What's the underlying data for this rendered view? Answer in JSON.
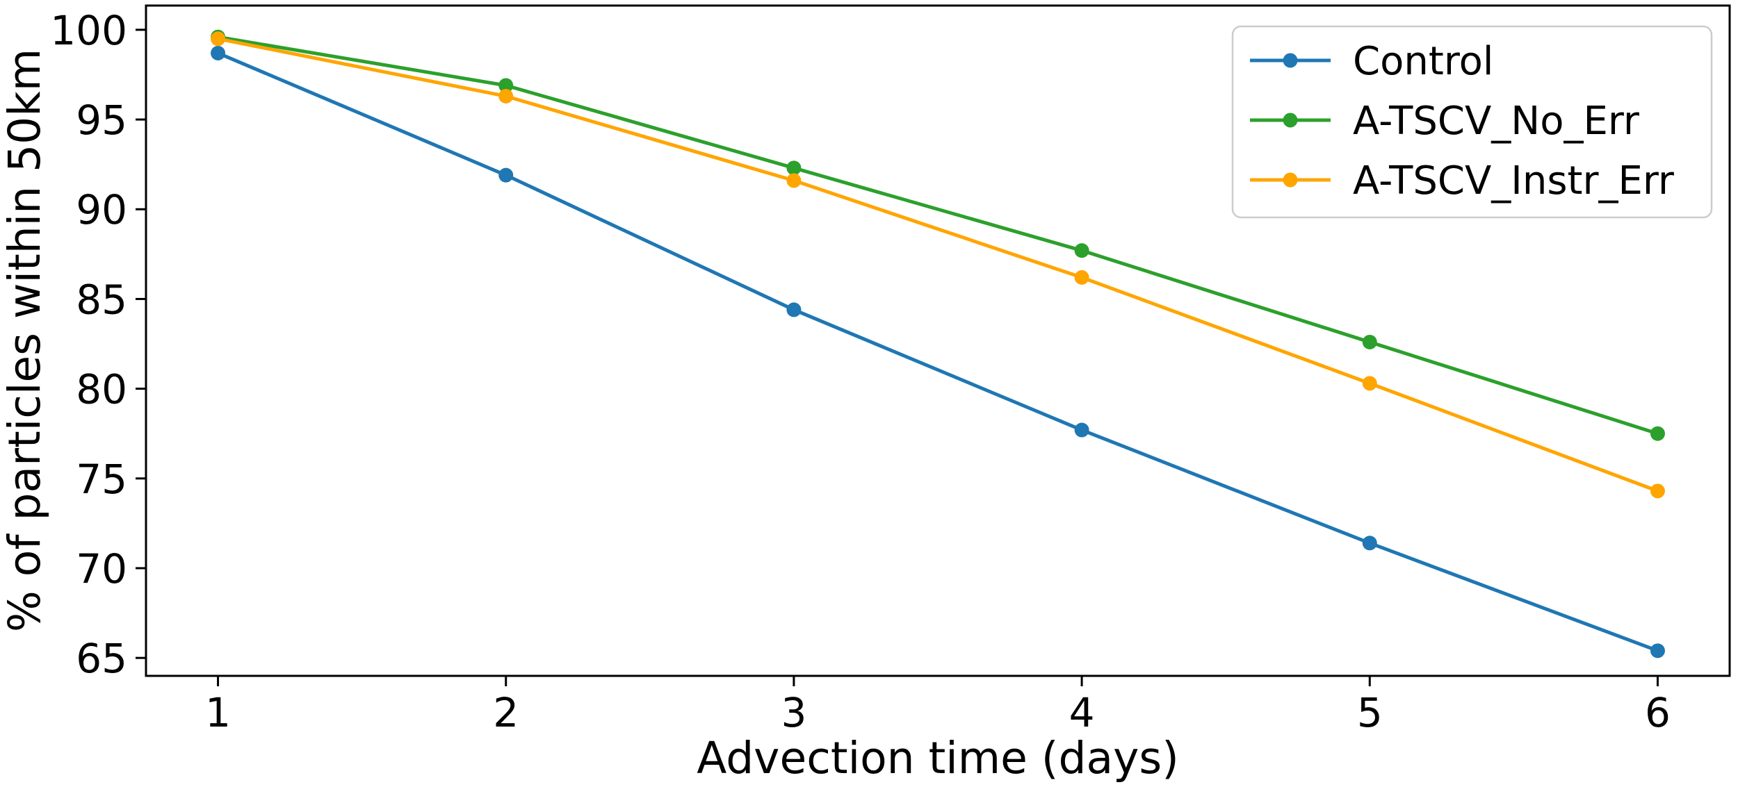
{
  "figure": {
    "background": "#ffffff",
    "text_color": "#000000",
    "spine_color": "#000000",
    "legend": {
      "border_color": "#cccccc",
      "background": "#ffffff",
      "position": "upper right"
    }
  },
  "chart_data": {
    "type": "line",
    "title": "",
    "xlabel": "Advection time (days)",
    "ylabel": "% of particles within 50km",
    "x": [
      1,
      2,
      3,
      4,
      5,
      6
    ],
    "x_tick_labels": [
      "1",
      "2",
      "3",
      "4",
      "5",
      "6"
    ],
    "y_ticks": [
      100,
      95,
      90,
      85,
      80,
      75,
      70,
      65
    ],
    "xlim": [
      0.75,
      6.25
    ],
    "ylim": [
      64.0,
      101.35
    ],
    "grid": false,
    "legend_position": "upper right",
    "marker": "circle",
    "line_width": 5,
    "marker_radius": 10.5,
    "series": [
      {
        "name": "Control",
        "color": "#1f77b4",
        "values": [
          98.7,
          91.9,
          84.4,
          77.7,
          71.4,
          65.4
        ]
      },
      {
        "name": "A-TSCV_No_Err",
        "color": "#2ca02c",
        "values": [
          99.6,
          96.9,
          92.3,
          87.7,
          82.6,
          77.5
        ]
      },
      {
        "name": "A-TSCV_Instr_Err",
        "color": "#ffa500",
        "values": [
          99.5,
          96.3,
          91.6,
          86.2,
          80.3,
          74.3
        ]
      }
    ]
  }
}
